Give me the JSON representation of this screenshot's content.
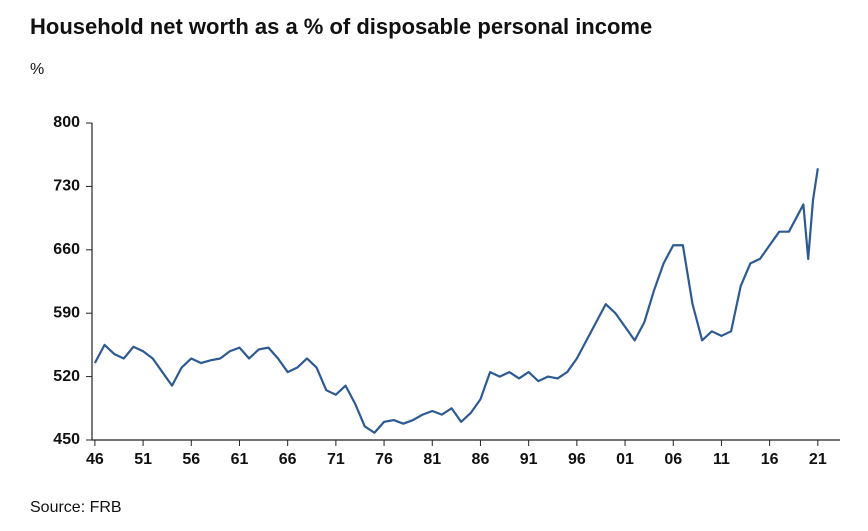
{
  "chart_data": {
    "type": "line",
    "title": "Household net worth as a % of disposable personal income",
    "y_unit": "%",
    "source": "Source: FRB",
    "x": [
      1946,
      1947,
      1948,
      1949,
      1950,
      1951,
      1952,
      1953,
      1954,
      1955,
      1956,
      1957,
      1958,
      1959,
      1960,
      1961,
      1962,
      1963,
      1964,
      1965,
      1966,
      1967,
      1968,
      1969,
      1970,
      1971,
      1972,
      1973,
      1974,
      1975,
      1976,
      1977,
      1978,
      1979,
      1980,
      1981,
      1982,
      1983,
      1984,
      1985,
      1986,
      1987,
      1988,
      1989,
      1990,
      1991,
      1992,
      1993,
      1994,
      1995,
      1996,
      1997,
      1998,
      1999,
      2000,
      2001,
      2002,
      2003,
      2004,
      2005,
      2006,
      2007,
      2008,
      2009,
      2010,
      2011,
      2012,
      2013,
      2014,
      2015,
      2016,
      2017,
      2018,
      2019,
      2019.5,
      2020,
      2020.5,
      2021
    ],
    "series": [
      {
        "name": "Household net worth",
        "color": "#2e5a93",
        "values": [
          535,
          555,
          545,
          540,
          553,
          548,
          540,
          525,
          510,
          530,
          540,
          535,
          538,
          540,
          548,
          552,
          540,
          550,
          552,
          540,
          525,
          530,
          540,
          530,
          505,
          500,
          510,
          490,
          465,
          458,
          470,
          472,
          468,
          472,
          478,
          482,
          478,
          485,
          470,
          480,
          495,
          525,
          520,
          525,
          518,
          525,
          515,
          520,
          518,
          525,
          540,
          560,
          580,
          600,
          590,
          575,
          560,
          580,
          615,
          645,
          665,
          665,
          600,
          560,
          570,
          565,
          570,
          620,
          645,
          650,
          665,
          680,
          680,
          700,
          710,
          650,
          715,
          750
        ]
      }
    ],
    "xlim": [
      1945.7,
      2023.3
    ],
    "xticks": [
      {
        "value": 1946,
        "label": "46"
      },
      {
        "value": 1951,
        "label": "51"
      },
      {
        "value": 1956,
        "label": "56"
      },
      {
        "value": 1961,
        "label": "61"
      },
      {
        "value": 1966,
        "label": "66"
      },
      {
        "value": 1971,
        "label": "71"
      },
      {
        "value": 1976,
        "label": "76"
      },
      {
        "value": 1981,
        "label": "81"
      },
      {
        "value": 1986,
        "label": "86"
      },
      {
        "value": 1991,
        "label": "91"
      },
      {
        "value": 1996,
        "label": "96"
      },
      {
        "value": 2001,
        "label": "01"
      },
      {
        "value": 2006,
        "label": "06"
      },
      {
        "value": 2011,
        "label": "11"
      },
      {
        "value": 2016,
        "label": "16"
      },
      {
        "value": 2021,
        "label": "21"
      }
    ],
    "ylim": [
      450,
      800
    ],
    "yticks": [
      450,
      520,
      590,
      660,
      730,
      800
    ]
  }
}
